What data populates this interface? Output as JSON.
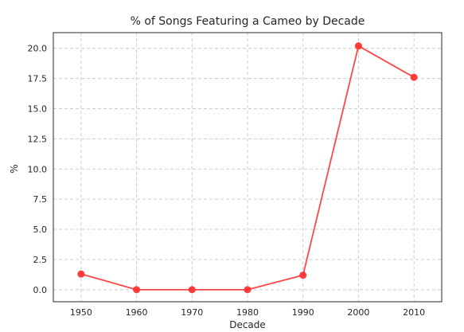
{
  "chart_data": {
    "type": "line",
    "title": "% of Songs Featuring a Cameo by Decade",
    "xlabel": "Decade",
    "ylabel": "%",
    "x": [
      1950,
      1960,
      1970,
      1980,
      1990,
      2000,
      2010
    ],
    "series": [
      {
        "values": [
          1.3,
          0.0,
          0.0,
          0.0,
          1.2,
          20.2,
          17.6
        ],
        "color": "#ff3333"
      }
    ],
    "xticks": [
      "1950",
      "1960",
      "1970",
      "1980",
      "1990",
      "2000",
      "2010"
    ],
    "yticks": [
      "0.0",
      "2.5",
      "5.0",
      "7.5",
      "10.0",
      "12.5",
      "15.0",
      "17.5",
      "20.0"
    ],
    "xlim": [
      1945,
      2015
    ],
    "ylim": [
      -1.0,
      21.3
    ],
    "grid": true,
    "grid_color": "#cccccc",
    "axes_color": "#262626"
  }
}
